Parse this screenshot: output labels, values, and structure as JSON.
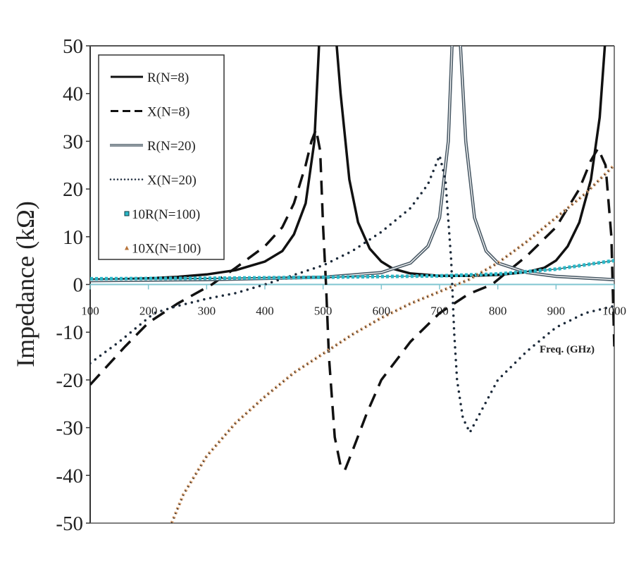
{
  "chart_data": {
    "type": "line",
    "title": "",
    "xlabel": "Freq. (GHz)",
    "ylabel": "Impedance (kΩ)",
    "xlim": [
      100,
      1000
    ],
    "ylim": [
      -50,
      50
    ],
    "xticks": [
      100,
      200,
      300,
      400,
      500,
      600,
      700,
      800,
      900,
      1000
    ],
    "yticks": [
      50,
      40,
      30,
      20,
      10,
      0,
      -10,
      -20,
      -30,
      -40,
      -50
    ],
    "grid": false,
    "legend_position": "top-left",
    "series": [
      {
        "name": "R(N=8)",
        "style": "solid-thick",
        "color": "#111111",
        "x": [
          100,
          150,
          200,
          250,
          300,
          350,
          400,
          430,
          450,
          470,
          485,
          495,
          505,
          520,
          530,
          545,
          560,
          580,
          600,
          620,
          650,
          700,
          750,
          800,
          850,
          880,
          900,
          920,
          940,
          960,
          975,
          985,
          990
        ],
        "y": [
          1,
          1.1,
          1.3,
          1.6,
          2.1,
          3,
          4.8,
          7,
          10.5,
          17,
          30,
          55,
          70,
          55,
          40,
          22,
          13,
          7.5,
          4.8,
          3.3,
          2.3,
          1.8,
          1.8,
          2,
          2.6,
          3.5,
          5,
          8,
          13,
          22,
          35,
          52,
          60
        ]
      },
      {
        "name": "X(N=8)",
        "style": "dashed",
        "color": "#111111",
        "x": [
          100,
          130,
          160,
          200,
          250,
          309,
          350,
          400,
          430,
          450,
          470,
          480,
          488,
          495,
          500,
          505,
          510,
          520,
          530,
          537,
          550,
          575,
          600,
          650,
          700,
          750,
          790,
          850,
          900,
          940,
          960,
          972,
          985,
          995,
          1000
        ],
        "y": [
          -21,
          -17,
          -13,
          -8,
          -4,
          0,
          3.5,
          8,
          12,
          17,
          25,
          30,
          32.5,
          28,
          12,
          0,
          -15,
          -32,
          -38,
          -39,
          -35,
          -27,
          -20,
          -12,
          -6,
          -2,
          0,
          6,
          12,
          20,
          26,
          28.5,
          25,
          10,
          -13
        ]
      },
      {
        "name": "R(N=20)",
        "style": "double",
        "color": "#5b6b78",
        "x": [
          100,
          300,
          500,
          600,
          650,
          680,
          700,
          715,
          722,
          728,
          735,
          745,
          760,
          780,
          800,
          850,
          900,
          1000
        ],
        "y": [
          0.8,
          1,
          1.5,
          2.5,
          4.5,
          8,
          14,
          30,
          52,
          70,
          52,
          30,
          14,
          7,
          4.5,
          2.5,
          1.7,
          1
        ]
      },
      {
        "name": "X(N=20)",
        "style": "dotted",
        "color": "#1c2a3a",
        "x": [
          100,
          150,
          210,
          250,
          300,
          350,
          400,
          450,
          500,
          550,
          600,
          650,
          680,
          700,
          710,
          720,
          725,
          730,
          740,
          752,
          765,
          800,
          850,
          900,
          950,
          1000
        ],
        "y": [
          -16.5,
          -12,
          -6,
          -4.5,
          -3,
          -1.8,
          0,
          2,
          4,
          7,
          11,
          16,
          21,
          27,
          22,
          5,
          -10,
          -20,
          -28,
          -31,
          -28,
          -20,
          -14,
          -9,
          -6,
          -4.5
        ]
      },
      {
        "name": "10R(N=100)",
        "style": "square-markers",
        "color": "#2bb8c8",
        "x": [
          100,
          300,
          500,
          700,
          800,
          900,
          1000
        ],
        "y": [
          1.2,
          1.3,
          1.5,
          1.8,
          2.2,
          3.2,
          5
        ]
      },
      {
        "name": "10X(N=100)",
        "style": "triangle-markers",
        "color": "#b8743a",
        "x": [
          240,
          260,
          300,
          350,
          400,
          450,
          500,
          550,
          600,
          650,
          700,
          750,
          800,
          850,
          900,
          950,
          1000
        ],
        "y": [
          -50,
          -44,
          -36,
          -29,
          -23.5,
          -18.5,
          -14.5,
          -10.5,
          -7,
          -4,
          -1.5,
          1,
          4.5,
          9,
          14,
          19,
          25
        ]
      }
    ]
  }
}
